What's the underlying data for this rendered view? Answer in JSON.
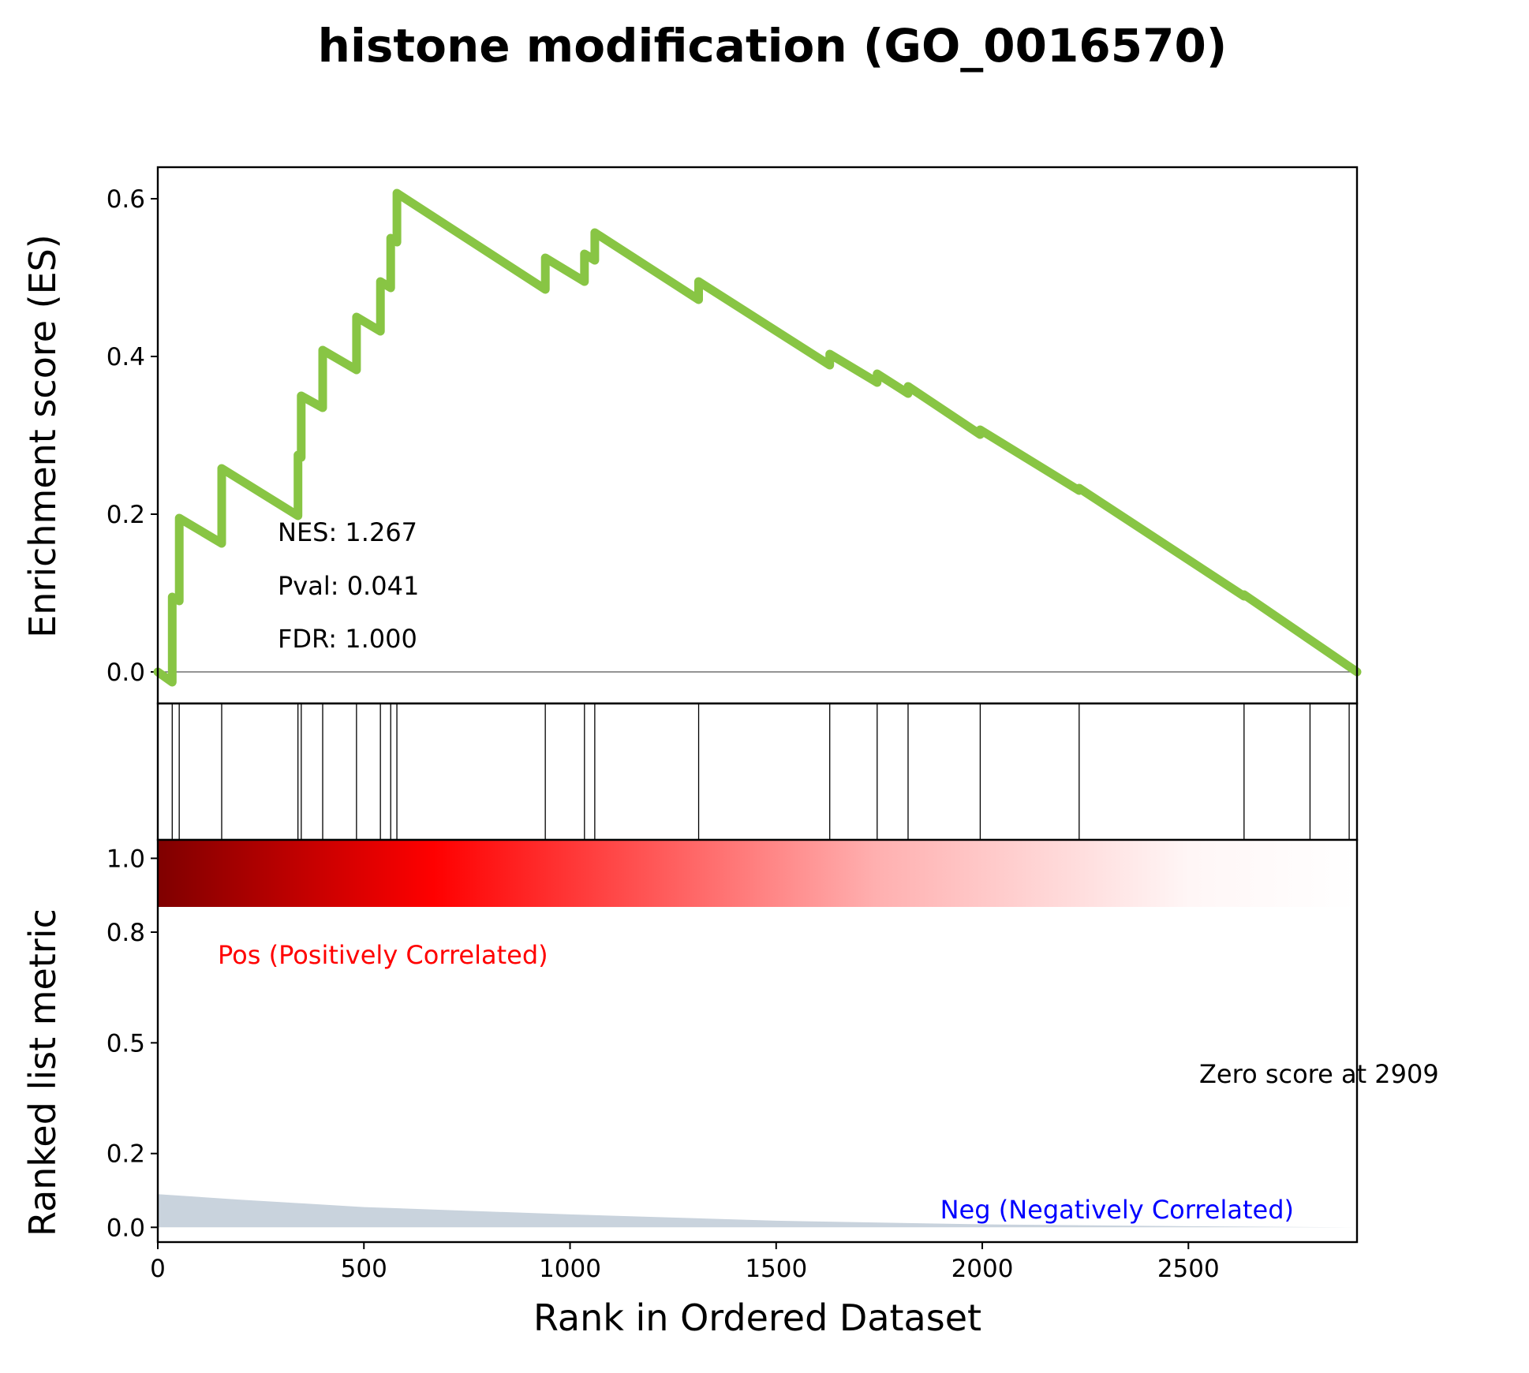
{
  "chart_data": {
    "type": "line",
    "title": "histone modification (GO_0016570)",
    "xlabel": "Rank in Ordered Dataset",
    "es_ylabel": "Enrichment score (ES)",
    "metric_ylabel": "Ranked list metric",
    "xlim": [
      0,
      2909
    ],
    "es_ylim": [
      -0.04,
      0.64
    ],
    "metric_ylim": [
      -0.04,
      1.05
    ],
    "x_ticks": [
      0,
      500,
      1000,
      1500,
      2000,
      2500
    ],
    "es_y_ticks": [
      "0.0",
      "0.2",
      "0.4",
      "0.6"
    ],
    "metric_y_ticks": [
      "0.0",
      "0.2",
      "0.5",
      "0.8",
      "1.0"
    ],
    "stats": {
      "nes": "NES: 1.267",
      "pval": "Pval: 0.041",
      "fdr": "FDR: 1.000"
    },
    "pos_label": "Pos (Positively Correlated)",
    "neg_label": "Neg (Negatively Correlated)",
    "zero_score_label": "Zero score at 2909",
    "hits": [
      35,
      52,
      155,
      340,
      348,
      400,
      482,
      540,
      565,
      580,
      940,
      1035,
      1060,
      1312,
      1630,
      1745,
      1820,
      1995,
      2235,
      2635,
      2795,
      2890
    ],
    "running_es": [
      {
        "x": 0,
        "y": 0.0
      },
      {
        "x": 35,
        "y": -0.013
      },
      {
        "x": 35,
        "y": 0.095
      },
      {
        "x": 52,
        "y": 0.09
      },
      {
        "x": 52,
        "y": 0.195
      },
      {
        "x": 155,
        "y": 0.163
      },
      {
        "x": 155,
        "y": 0.258
      },
      {
        "x": 340,
        "y": 0.198
      },
      {
        "x": 340,
        "y": 0.275
      },
      {
        "x": 348,
        "y": 0.272
      },
      {
        "x": 348,
        "y": 0.35
      },
      {
        "x": 400,
        "y": 0.335
      },
      {
        "x": 400,
        "y": 0.408
      },
      {
        "x": 482,
        "y": 0.383
      },
      {
        "x": 482,
        "y": 0.45
      },
      {
        "x": 540,
        "y": 0.432
      },
      {
        "x": 540,
        "y": 0.495
      },
      {
        "x": 565,
        "y": 0.487
      },
      {
        "x": 565,
        "y": 0.55
      },
      {
        "x": 580,
        "y": 0.545
      },
      {
        "x": 580,
        "y": 0.607
      },
      {
        "x": 940,
        "y": 0.485
      },
      {
        "x": 940,
        "y": 0.525
      },
      {
        "x": 1035,
        "y": 0.495
      },
      {
        "x": 1035,
        "y": 0.53
      },
      {
        "x": 1060,
        "y": 0.522
      },
      {
        "x": 1060,
        "y": 0.557
      },
      {
        "x": 1312,
        "y": 0.472
      },
      {
        "x": 1312,
        "y": 0.495
      },
      {
        "x": 1630,
        "y": 0.389
      },
      {
        "x": 1630,
        "y": 0.403
      },
      {
        "x": 1745,
        "y": 0.367
      },
      {
        "x": 1745,
        "y": 0.378
      },
      {
        "x": 1820,
        "y": 0.353
      },
      {
        "x": 1820,
        "y": 0.362
      },
      {
        "x": 1995,
        "y": 0.301
      },
      {
        "x": 1995,
        "y": 0.307
      },
      {
        "x": 2235,
        "y": 0.23
      },
      {
        "x": 2235,
        "y": 0.233
      },
      {
        "x": 2635,
        "y": 0.096
      },
      {
        "x": 2635,
        "y": 0.098
      },
      {
        "x": 2909,
        "y": 0.0
      }
    ],
    "ranked_metric": [
      {
        "x": 0,
        "y": 0.09
      },
      {
        "x": 200,
        "y": 0.075
      },
      {
        "x": 500,
        "y": 0.055
      },
      {
        "x": 1000,
        "y": 0.035
      },
      {
        "x": 1500,
        "y": 0.018
      },
      {
        "x": 2000,
        "y": 0.008
      },
      {
        "x": 2500,
        "y": 0.003
      },
      {
        "x": 2909,
        "y": 0.0
      }
    ],
    "colors": {
      "es_line": "#88c544",
      "metric_fill": "#c9d3dd",
      "pos_text": "#ff0000",
      "neg_text": "#0000ff",
      "heatmap": [
        "#7f0000",
        "#ff0000",
        "#ffffff"
      ]
    }
  }
}
